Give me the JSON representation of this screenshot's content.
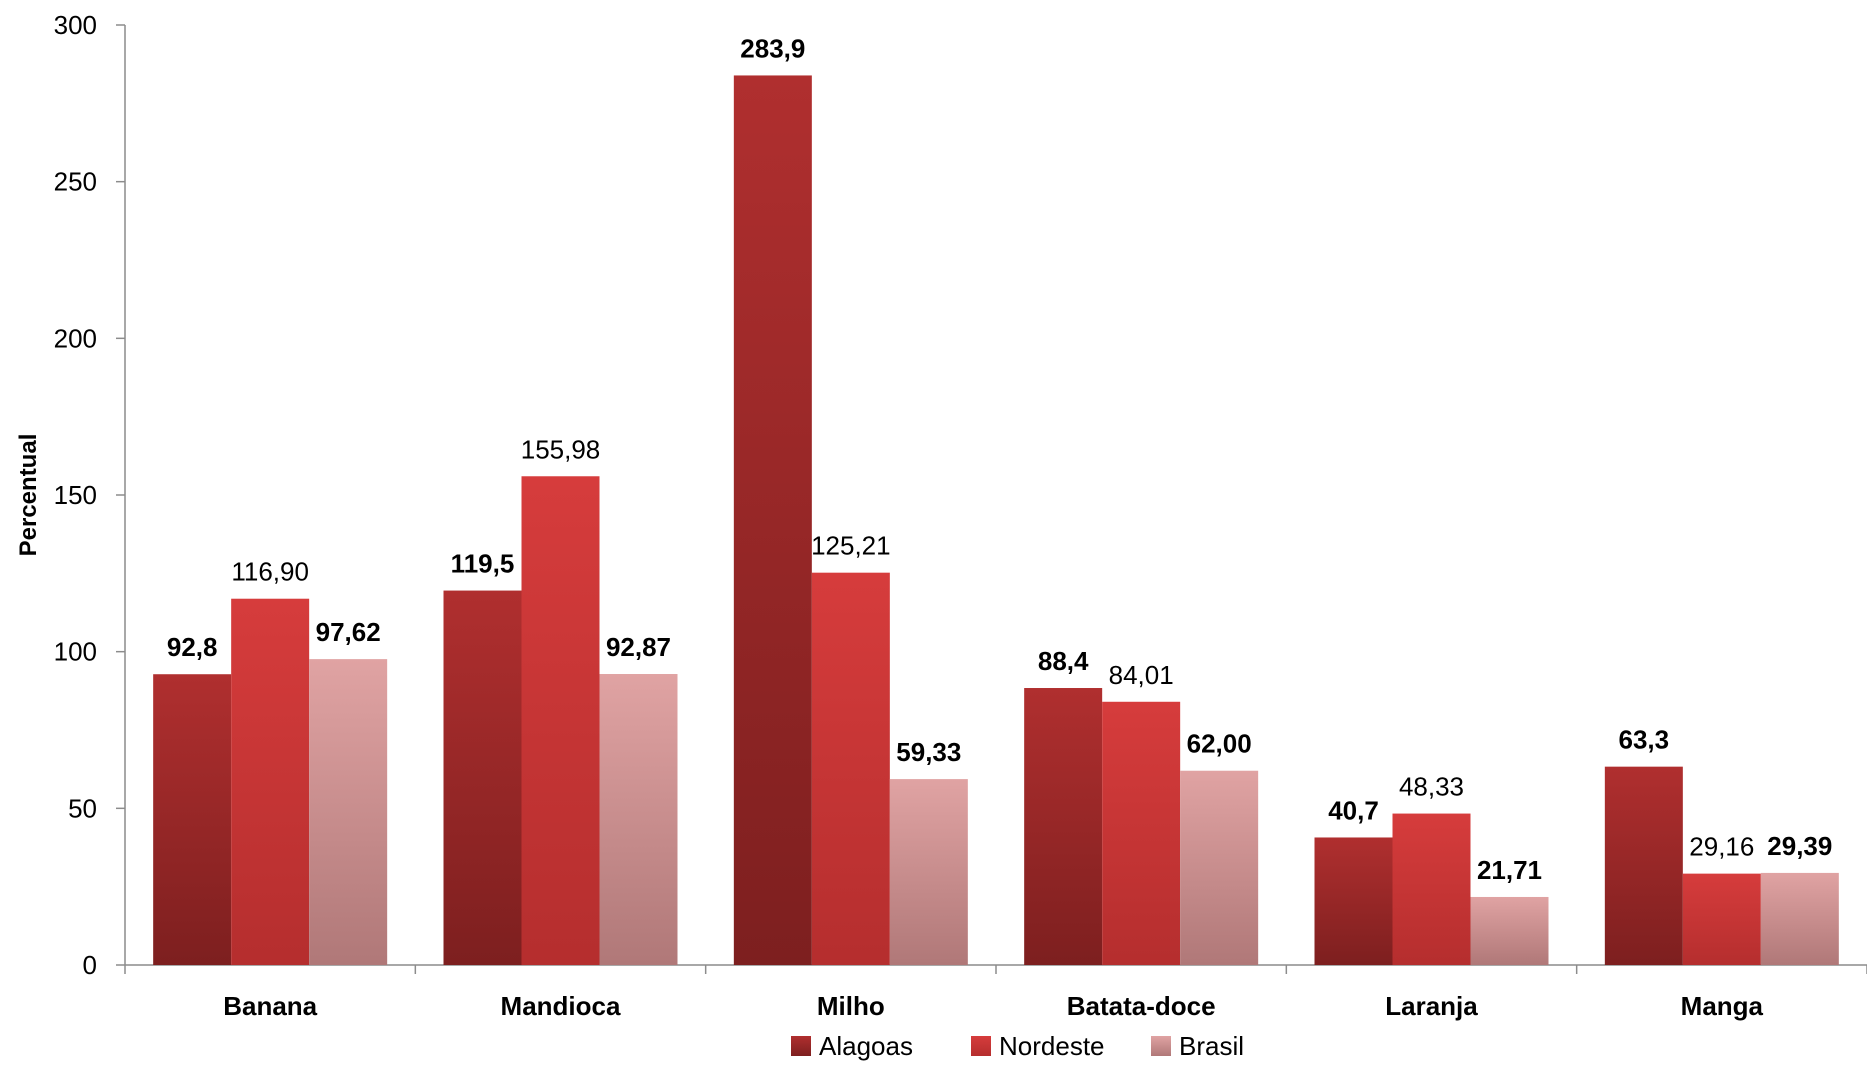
{
  "chart_data": {
    "type": "bar",
    "title": "",
    "xlabel": "",
    "ylabel": "Percentual",
    "ylim": [
      0,
      300
    ],
    "yticks": [
      0,
      50,
      100,
      150,
      200,
      250,
      300
    ],
    "ytick_labels": [
      "0",
      "50",
      "100",
      "150",
      "200",
      "250",
      "300"
    ],
    "grid": false,
    "legend_position": "bottom",
    "categories": [
      "Banana",
      "Mandioca",
      "Milho",
      "Batata-doce",
      "Laranja",
      "Manga"
    ],
    "series": [
      {
        "name": "Alagoas",
        "values": [
          92.8,
          119.5,
          283.9,
          88.4,
          40.7,
          63.3
        ],
        "labels": [
          "92,8",
          "119,5",
          "283,9",
          "88,4",
          "40,7",
          "63,3"
        ],
        "label_bold": [
          true,
          true,
          true,
          true,
          true,
          true
        ],
        "color_top": "#b02f2f",
        "color_bottom": "#7d1f1f"
      },
      {
        "name": "Nordeste",
        "values": [
          116.9,
          155.98,
          125.21,
          84.01,
          48.33,
          29.16
        ],
        "labels": [
          "116,90",
          "155,98",
          "125,21",
          "84,01",
          "48,33",
          "29,16"
        ],
        "label_bold": [
          false,
          false,
          false,
          false,
          false,
          false
        ],
        "color_top": "#d63c3c",
        "color_bottom": "#b52e2e"
      },
      {
        "name": "Brasil",
        "values": [
          97.62,
          92.87,
          59.33,
          62.0,
          21.71,
          29.39
        ],
        "labels": [
          "97,62",
          "92,87",
          "59,33",
          "62,00",
          "21,71",
          "29,39"
        ],
        "label_bold": [
          true,
          true,
          true,
          true,
          true,
          true
        ],
        "color_top": "#e0a3a3",
        "color_bottom": "#b07878"
      }
    ]
  }
}
